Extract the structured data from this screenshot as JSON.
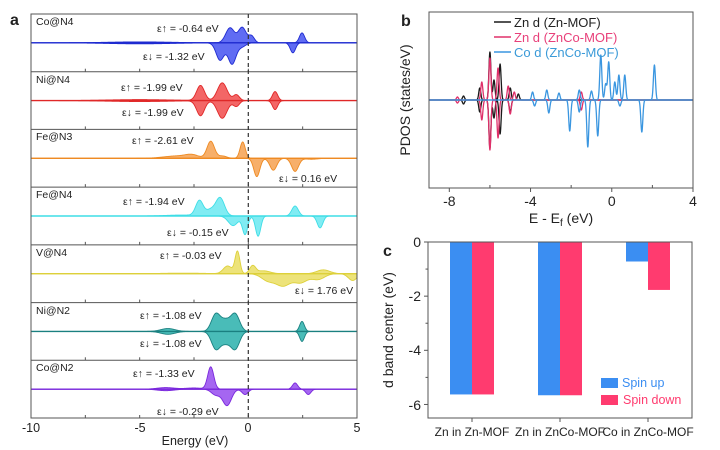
{
  "figure": {
    "panel_letters": [
      "a",
      "b",
      "c"
    ]
  },
  "chart_data": [
    {
      "panel": "a",
      "type": "area",
      "title": "",
      "xlabel": "Energy (eV)",
      "ylabel": "",
      "xlim": [
        -10,
        5
      ],
      "ylim": [
        -1.5,
        1.5
      ],
      "xticks": [
        "-10",
        "-5",
        "0",
        "5"
      ],
      "minor_tick_values": [
        -7.5,
        -5,
        -2.5,
        0,
        2.5
      ],
      "fermi_level": 0,
      "peak_format": "[energy_eV, amplitude, width_eV]",
      "subplots": [
        {
          "label": "Co@N4",
          "eps_up": "ε↑ = -0.64 eV",
          "eps_down": "ε↓ = -1.32 eV",
          "line_color": "#1f2bd0",
          "fill_color": "#4f5cf2",
          "spin_up_peaks": [
            [
              -0.84,
              0.78,
              0.2
            ],
            [
              -0.28,
              0.8,
              0.18
            ],
            [
              0.15,
              0.35,
              0.13
            ],
            [
              2.47,
              0.52,
              0.12
            ],
            [
              -5,
              0.05,
              1.5
            ]
          ],
          "spin_down_peaks": [
            [
              -1.3,
              0.9,
              0.18
            ],
            [
              -0.75,
              1.1,
              0.18
            ],
            [
              -0.3,
              0.2,
              0.18
            ],
            [
              2.05,
              0.52,
              0.12
            ],
            [
              -5,
              0.05,
              1.5
            ]
          ]
        },
        {
          "label": "Ni@N4",
          "eps_up": "ε↑ = -1.99 eV",
          "eps_down": "ε↓ = -1.99 eV",
          "line_color": "#e02828",
          "fill_color": "#f25555",
          "spin_up_peaks": [
            [
              -2.2,
              0.78,
              0.18
            ],
            [
              -1.2,
              0.92,
              0.22
            ],
            [
              -0.55,
              0.3,
              0.14
            ],
            [
              1.23,
              0.47,
              0.12
            ],
            [
              -5,
              0.05,
              1.5
            ]
          ],
          "spin_down_peaks": [
            [
              -2.2,
              0.78,
              0.18
            ],
            [
              -1.2,
              0.92,
              0.22
            ],
            [
              -0.55,
              0.3,
              0.14
            ],
            [
              1.23,
              0.47,
              0.12
            ],
            [
              -5,
              0.05,
              1.5
            ]
          ]
        },
        {
          "label": "Fe@N3",
          "eps_up": "ε↑ = -2.61 eV",
          "eps_down": "ε↓ = 0.16 eV",
          "line_color": "#ee8a22",
          "fill_color": "#f6a65a",
          "spin_up_peaks": [
            [
              -1.73,
              0.88,
              0.17
            ],
            [
              -0.26,
              0.85,
              0.12
            ],
            [
              -2.6,
              0.15,
              0.3
            ],
            [
              -3.3,
              0.12,
              0.6
            ],
            [
              -1.2,
              0.12,
              0.2
            ]
          ],
          "spin_down_peaks": [
            [
              0.39,
              0.95,
              0.14
            ],
            [
              1.15,
              0.62,
              0.16
            ],
            [
              2.15,
              0.68,
              0.16
            ],
            [
              2.9,
              0.05,
              0.3
            ]
          ]
        },
        {
          "label": "Fe@N4",
          "eps_up": "ε↑ = -1.94 eV",
          "eps_down": "ε↓ = -0.15 eV",
          "line_color": "#3edde6",
          "fill_color": "#72eaf2",
          "spin_up_peaks": [
            [
              -2.25,
              0.78,
              0.17
            ],
            [
              -1.3,
              0.94,
              0.2
            ],
            [
              -1.75,
              0.3,
              0.2
            ],
            [
              2.15,
              0.52,
              0.15
            ],
            [
              -3,
              0.05,
              0.8
            ]
          ],
          "spin_down_peaks": [
            [
              -0.7,
              0.5,
              0.22
            ],
            [
              -0.15,
              0.95,
              0.12
            ],
            [
              0.45,
              1.05,
              0.12
            ],
            [
              3.3,
              0.62,
              0.13
            ]
          ]
        },
        {
          "label": "V@N4",
          "eps_up": "ε↑ = -0.03 eV",
          "eps_down": "ε↓ = 1.76 eV",
          "line_color": "#ddd03a",
          "fill_color": "#ebe06c",
          "spin_up_peaks": [
            [
              -0.5,
              1.15,
              0.11
            ],
            [
              -0.95,
              0.4,
              0.2
            ],
            [
              0.2,
              0.4,
              0.14
            ],
            [
              0.7,
              0.15,
              0.3
            ],
            [
              3.45,
              0.2,
              0.3
            ],
            [
              -3,
              0.03,
              1.0
            ]
          ],
          "spin_down_peaks": [
            [
              0.9,
              0.35,
              0.3
            ],
            [
              1.6,
              0.62,
              0.33
            ],
            [
              2.4,
              0.45,
              0.3
            ],
            [
              3.2,
              0.3,
              0.3
            ],
            [
              4.8,
              0.35,
              0.2
            ]
          ]
        },
        {
          "label": "Ni@N2",
          "eps_up": "ε↑ = -1.08 eV",
          "eps_down": "ε↓ = -1.08 eV",
          "line_color": "#1a8080",
          "fill_color": "#35b5b0",
          "spin_up_peaks": [
            [
              -1.5,
              0.88,
              0.2
            ],
            [
              -0.6,
              0.88,
              0.2
            ],
            [
              -1.05,
              0.55,
              0.22
            ],
            [
              -3.7,
              0.15,
              0.33
            ],
            [
              2.47,
              0.52,
              0.11
            ]
          ],
          "spin_down_peaks": [
            [
              -1.5,
              0.88,
              0.2
            ],
            [
              -0.6,
              0.88,
              0.2
            ],
            [
              -1.05,
              0.55,
              0.22
            ],
            [
              -3.7,
              0.15,
              0.33
            ],
            [
              2.47,
              0.52,
              0.11
            ]
          ]
        },
        {
          "label": "Co@N2",
          "eps_up": "ε↑ = -1.33 eV",
          "eps_down": "ε↓ = -0.29 eV",
          "line_color": "#7a28dc",
          "fill_color": "#9b55f0",
          "spin_up_peaks": [
            [
              -1.73,
              1.15,
              0.14
            ],
            [
              -3.8,
              0.08,
              0.4
            ],
            [
              -2.5,
              0.06,
              0.4
            ],
            [
              2.15,
              0.32,
              0.12
            ]
          ],
          "spin_down_peaks": [
            [
              -0.98,
              0.85,
              0.2
            ],
            [
              -1.5,
              0.3,
              0.2
            ],
            [
              -0.15,
              0.28,
              0.14
            ],
            [
              2.76,
              0.28,
              0.12
            ],
            [
              -3.8,
              0.08,
              0.4
            ]
          ]
        }
      ]
    },
    {
      "panel": "b",
      "type": "line",
      "title": "",
      "xlabel_main": "E - E",
      "xlabel_sub": "f",
      "xlabel_tail": " (eV)",
      "ylabel": "PDOS (states/eV)",
      "xlim": [
        -9,
        4
      ],
      "ylim": [
        -4.4,
        4.4
      ],
      "xticks": [
        "-8",
        "-4",
        "0",
        "4"
      ],
      "legend_position": "top-left",
      "peak_format": "[energy_eV, signed_amplitude, width_eV]",
      "series": [
        {
          "name": "Zn d (Zn-MOF)",
          "color": "#1a1a1a",
          "legend_color": "#222222",
          "peaks": [
            [
              -6.0,
              2.4,
              0.05
            ],
            [
              -5.5,
              1.8,
              0.05
            ],
            [
              -6.5,
              0.6,
              0.05
            ],
            [
              -5.0,
              0.6,
              0.05
            ],
            [
              -5.8,
              1.0,
              0.05
            ],
            [
              -7.3,
              0.2,
              0.05
            ],
            [
              -4.6,
              0.3,
              0.05
            ],
            [
              -6.0,
              -2.4,
              0.05
            ],
            [
              -5.5,
              -1.7,
              0.05
            ],
            [
              -6.5,
              -0.6,
              0.05
            ],
            [
              -5.0,
              -0.6,
              0.05
            ],
            [
              -5.8,
              -0.9,
              0.05
            ],
            [
              -7.3,
              -0.2,
              0.05
            ]
          ]
        },
        {
          "name": "Zn d (ZnCo-MOF)",
          "color": "#e0306a",
          "legend_color": "#e8407a",
          "peaks": [
            [
              -6.0,
              2.1,
              0.05
            ],
            [
              -5.6,
              1.6,
              0.05
            ],
            [
              -6.4,
              0.9,
              0.05
            ],
            [
              -5.1,
              0.7,
              0.05
            ],
            [
              -4.8,
              0.4,
              0.05
            ],
            [
              -1.5,
              0.4,
              0.05
            ],
            [
              -7.6,
              0.15,
              0.05
            ],
            [
              -6.0,
              -2.5,
              0.05
            ],
            [
              -5.6,
              -1.9,
              0.05
            ],
            [
              -6.4,
              -1.0,
              0.05
            ],
            [
              -5.0,
              -0.7,
              0.05
            ],
            [
              -1.5,
              -0.5,
              0.05
            ],
            [
              -7.6,
              -0.15,
              0.05
            ]
          ]
        },
        {
          "name": "Co d (ZnCo-MOF)",
          "color": "#3a96e0",
          "legend_color": "#3a9ad8",
          "peaks": [
            [
              -0.54,
              2.25,
              0.05
            ],
            [
              -0.15,
              1.9,
              0.05
            ],
            [
              0.35,
              1.25,
              0.05
            ],
            [
              0.64,
              1.25,
              0.05
            ],
            [
              2.1,
              1.75,
              0.05
            ],
            [
              -3.9,
              0.4,
              0.05
            ],
            [
              -3.2,
              0.5,
              0.05
            ],
            [
              -2.6,
              0.35,
              0.05
            ],
            [
              -1.6,
              0.5,
              0.05
            ],
            [
              -1.0,
              0.45,
              0.05
            ],
            [
              -0.3,
              0.8,
              0.05
            ],
            [
              0.15,
              0.9,
              0.05
            ],
            [
              -3.1,
              -0.65,
              0.05
            ],
            [
              -2.07,
              -1.55,
              0.05
            ],
            [
              -1.18,
              -2.35,
              0.05
            ],
            [
              -0.69,
              -1.8,
              0.05
            ],
            [
              1.48,
              -1.6,
              0.05
            ],
            [
              -3.8,
              -0.3,
              0.05
            ],
            [
              -1.6,
              -0.6,
              0.05
            ],
            [
              0.4,
              -0.3,
              0.05
            ]
          ]
        }
      ]
    },
    {
      "panel": "c",
      "type": "bar",
      "title": "",
      "xlabel": "",
      "ylabel": "d band center (eV)",
      "ylim": [
        -6.5,
        0
      ],
      "yticks": [
        "0",
        "-2",
        "-4",
        "-6"
      ],
      "major_tick_values": [
        0,
        -2,
        -4,
        -6
      ],
      "minor_tick_values": [
        -1,
        -3,
        -5
      ],
      "categories": [
        "Zn in Zn-MOF",
        "Zn in ZnCo-MOF",
        "Co in ZnCo-MOF"
      ],
      "legend_position": "bottom-right",
      "series": [
        {
          "name": "Spin up",
          "color": "#3b8ef2",
          "values": [
            -5.63,
            -5.66,
            -0.72
          ]
        },
        {
          "name": "Spin down",
          "color": "#ff3b6f",
          "values": [
            -5.63,
            -5.66,
            -1.77
          ]
        }
      ]
    }
  ]
}
